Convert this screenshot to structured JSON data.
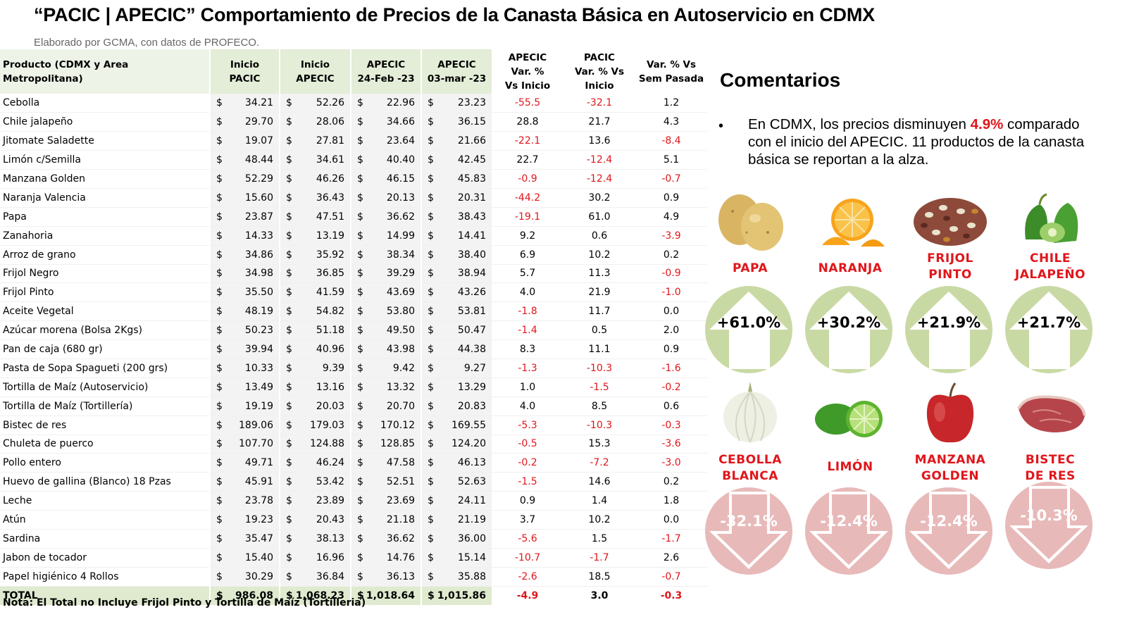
{
  "title": "“PACIC | APECIC” Comportamiento de Precios de la Canasta Básica en Autoservicio en CDMX",
  "subtitle": "Elaborado por GCMA, con datos de PROFECO.",
  "table": {
    "headers": {
      "product": "Producto (CDMX y Area Metropolitana)",
      "inicio_pacic": [
        "Inicio",
        "PACIC"
      ],
      "inicio_apecic": [
        "Inicio",
        "APECIC"
      ],
      "apecic_24feb": [
        "APECIC",
        "24-Feb -23"
      ],
      "apecic_03mar": [
        "APECIC",
        "03-mar -23"
      ],
      "var_apecic": [
        "APECIC",
        "Var. %",
        "Vs  Inicio"
      ],
      "var_pacic": [
        "PACIC",
        "Var. % Vs",
        "Inicio"
      ],
      "var_sem": [
        "Var. % Vs",
        "Sem Pasada"
      ]
    },
    "rows": [
      {
        "product": "Cebolla",
        "inicio_pacic": "34.21",
        "inicio_apecic": "52.26",
        "apecic_24feb": "22.96",
        "apecic_03mar": "23.23",
        "var_apecic": "-55.5",
        "var_pacic": "-32.1",
        "var_sem": "1.2"
      },
      {
        "product": "Chile jalapeño",
        "inicio_pacic": "29.70",
        "inicio_apecic": "28.06",
        "apecic_24feb": "34.66",
        "apecic_03mar": "36.15",
        "var_apecic": "28.8",
        "var_pacic": "21.7",
        "var_sem": "4.3"
      },
      {
        "product": "Jitomate Saladette",
        "inicio_pacic": "19.07",
        "inicio_apecic": "27.81",
        "apecic_24feb": "23.64",
        "apecic_03mar": "21.66",
        "var_apecic": "-22.1",
        "var_pacic": "13.6",
        "var_sem": "-8.4"
      },
      {
        "product": "Limón c/Semilla",
        "inicio_pacic": "48.44",
        "inicio_apecic": "34.61",
        "apecic_24feb": "40.40",
        "apecic_03mar": "42.45",
        "var_apecic": "22.7",
        "var_pacic": "-12.4",
        "var_sem": "5.1"
      },
      {
        "product": "Manzana Golden",
        "inicio_pacic": "52.29",
        "inicio_apecic": "46.26",
        "apecic_24feb": "46.15",
        "apecic_03mar": "45.83",
        "var_apecic": "-0.9",
        "var_pacic": "-12.4",
        "var_sem": "-0.7"
      },
      {
        "product": "Naranja Valencia",
        "inicio_pacic": "15.60",
        "inicio_apecic": "36.43",
        "apecic_24feb": "20.13",
        "apecic_03mar": "20.31",
        "var_apecic": "-44.2",
        "var_pacic": "30.2",
        "var_sem": "0.9"
      },
      {
        "product": "Papa",
        "inicio_pacic": "23.87",
        "inicio_apecic": "47.51",
        "apecic_24feb": "36.62",
        "apecic_03mar": "38.43",
        "var_apecic": "-19.1",
        "var_pacic": "61.0",
        "var_sem": "4.9"
      },
      {
        "product": "Zanahoria",
        "inicio_pacic": "14.33",
        "inicio_apecic": "13.19",
        "apecic_24feb": "14.99",
        "apecic_03mar": "14.41",
        "var_apecic": "9.2",
        "var_pacic": "0.6",
        "var_sem": "-3.9"
      },
      {
        "product": "Arroz de grano",
        "inicio_pacic": "34.86",
        "inicio_apecic": "35.92",
        "apecic_24feb": "38.34",
        "apecic_03mar": "38.40",
        "var_apecic": "6.9",
        "var_pacic": "10.2",
        "var_sem": "0.2"
      },
      {
        "product": "Frijol Negro",
        "inicio_pacic": "34.98",
        "inicio_apecic": "36.85",
        "apecic_24feb": "39.29",
        "apecic_03mar": "38.94",
        "var_apecic": "5.7",
        "var_pacic": "11.3",
        "var_sem": "-0.9"
      },
      {
        "product": "Frijol Pinto",
        "inicio_pacic": "35.50",
        "inicio_apecic": "41.59",
        "apecic_24feb": "43.69",
        "apecic_03mar": "43.26",
        "var_apecic": "4.0",
        "var_pacic": "21.9",
        "var_sem": "-1.0"
      },
      {
        "product": "Aceite Vegetal",
        "inicio_pacic": "48.19",
        "inicio_apecic": "54.82",
        "apecic_24feb": "53.80",
        "apecic_03mar": "53.81",
        "var_apecic": "-1.8",
        "var_pacic": "11.7",
        "var_sem": "0.0"
      },
      {
        "product": "Azúcar morena (Bolsa 2Kgs)",
        "inicio_pacic": "50.23",
        "inicio_apecic": "51.18",
        "apecic_24feb": "49.50",
        "apecic_03mar": "50.47",
        "var_apecic": "-1.4",
        "var_pacic": "0.5",
        "var_sem": "2.0"
      },
      {
        "product": "Pan de caja (680 gr)",
        "inicio_pacic": "39.94",
        "inicio_apecic": "40.96",
        "apecic_24feb": "43.98",
        "apecic_03mar": "44.38",
        "var_apecic": "8.3",
        "var_pacic": "11.1",
        "var_sem": "0.9"
      },
      {
        "product": "Pasta de Sopa Spagueti (200 grs)",
        "inicio_pacic": "10.33",
        "inicio_apecic": "9.39",
        "apecic_24feb": "9.42",
        "apecic_03mar": "9.27",
        "var_apecic": "-1.3",
        "var_pacic": "-10.3",
        "var_sem": "-1.6"
      },
      {
        "product": "Tortilla de Maíz (Autoservicio)",
        "inicio_pacic": "13.49",
        "inicio_apecic": "13.16",
        "apecic_24feb": "13.32",
        "apecic_03mar": "13.29",
        "var_apecic": "1.0",
        "var_pacic": "-1.5",
        "var_sem": "-0.2"
      },
      {
        "product": "Tortilla de Maíz (Tortillería)",
        "inicio_pacic": "19.19",
        "inicio_apecic": "20.03",
        "apecic_24feb": "20.70",
        "apecic_03mar": "20.83",
        "var_apecic": "4.0",
        "var_pacic": "8.5",
        "var_sem": "0.6"
      },
      {
        "product": "Bistec de res",
        "inicio_pacic": "189.06",
        "inicio_apecic": "179.03",
        "apecic_24feb": "170.12",
        "apecic_03mar": "169.55",
        "var_apecic": "-5.3",
        "var_pacic": "-10.3",
        "var_sem": "-0.3"
      },
      {
        "product": "Chuleta de puerco",
        "inicio_pacic": "107.70",
        "inicio_apecic": "124.88",
        "apecic_24feb": "128.85",
        "apecic_03mar": "124.20",
        "var_apecic": "-0.5",
        "var_pacic": "15.3",
        "var_sem": "-3.6"
      },
      {
        "product": "Pollo entero",
        "inicio_pacic": "49.71",
        "inicio_apecic": "46.24",
        "apecic_24feb": "47.58",
        "apecic_03mar": "46.13",
        "var_apecic": "-0.2",
        "var_pacic": "-7.2",
        "var_sem": "-3.0"
      },
      {
        "product": "Huevo de gallina (Blanco) 18 Pzas",
        "inicio_pacic": "45.91",
        "inicio_apecic": "53.42",
        "apecic_24feb": "52.51",
        "apecic_03mar": "52.63",
        "var_apecic": "-1.5",
        "var_pacic": "14.6",
        "var_sem": "0.2"
      },
      {
        "product": "Leche",
        "inicio_pacic": "23.78",
        "inicio_apecic": "23.89",
        "apecic_24feb": "23.69",
        "apecic_03mar": "24.11",
        "var_apecic": "0.9",
        "var_pacic": "1.4",
        "var_sem": "1.8"
      },
      {
        "product": "Atún",
        "inicio_pacic": "19.23",
        "inicio_apecic": "20.43",
        "apecic_24feb": "21.18",
        "apecic_03mar": "21.19",
        "var_apecic": "3.7",
        "var_pacic": "10.2",
        "var_sem": "0.0"
      },
      {
        "product": "Sardina",
        "inicio_pacic": "35.47",
        "inicio_apecic": "38.13",
        "apecic_24feb": "36.62",
        "apecic_03mar": "36.00",
        "var_apecic": "-5.6",
        "var_pacic": "1.5",
        "var_sem": "-1.7"
      },
      {
        "product": "Jabon de tocador",
        "inicio_pacic": "15.40",
        "inicio_apecic": "16.96",
        "apecic_24feb": "14.76",
        "apecic_03mar": "15.14",
        "var_apecic": "-10.7",
        "var_pacic": "-1.7",
        "var_sem": "2.6"
      },
      {
        "product": "Papel higiénico 4 Rollos",
        "inicio_pacic": "30.29",
        "inicio_apecic": "36.84",
        "apecic_24feb": "36.13",
        "apecic_03mar": "35.88",
        "var_apecic": "-2.6",
        "var_pacic": "18.5",
        "var_sem": "-0.7"
      }
    ],
    "total": {
      "product": "TOTAL",
      "inicio_pacic": "986.08",
      "inicio_apecic": "1,068.23",
      "apecic_24feb": "1,018.64",
      "apecic_03mar": "1,015.86",
      "var_apecic": "-4.9",
      "var_pacic": "3.0",
      "var_sem": "-0.3"
    },
    "note": "Nota: El Total no Incluye Frijol Pinto y Tortilla de Maíz (Tortilleria)"
  },
  "comments": {
    "title": "Comentarios",
    "bullet": "•",
    "text_before": "En CDMX, los precios disminuyen ",
    "highlight": "4.9%",
    "text_after": " comparado con el inicio del APECIC. 11 productos de la canasta básica se reportan a la alza."
  },
  "colors": {
    "negative": "#e0161b",
    "up_circle": "#c9d9a4",
    "down_circle": "#e8b9b9",
    "header_green": "#e3edd7",
    "total_green": "#dfeacf"
  },
  "highlights_up": [
    {
      "name": [
        "PAPA"
      ],
      "pct": "+61.0%",
      "icon": "potato-icon"
    },
    {
      "name": [
        "NARANJA"
      ],
      "pct": "+30.2%",
      "icon": "orange-icon"
    },
    {
      "name": [
        "FRIJOL",
        "PINTO"
      ],
      "pct": "+21.9%",
      "icon": "beans-icon"
    },
    {
      "name": [
        "CHILE",
        "JALAPEÑO"
      ],
      "pct": "+21.7%",
      "icon": "jalapeno-icon"
    }
  ],
  "highlights_down": [
    {
      "name": [
        "CEBOLLA",
        "BLANCA"
      ],
      "pct": "-32.1%",
      "icon": "onion-icon"
    },
    {
      "name": [
        "LIMÓN"
      ],
      "pct": "-12.4%",
      "icon": "lime-icon"
    },
    {
      "name": [
        "MANZANA",
        "GOLDEN"
      ],
      "pct": "-12.4%",
      "icon": "apple-icon"
    },
    {
      "name": [
        "BISTEC",
        "DE RES"
      ],
      "pct": "-10.3%",
      "icon": "steak-icon"
    }
  ]
}
